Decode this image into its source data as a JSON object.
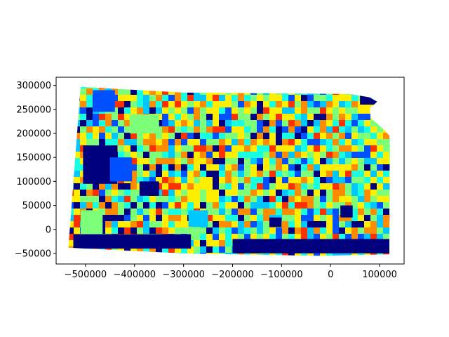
{
  "chart_data": {
    "type": "heatmap",
    "subject": "Kansas census-area choropleth (jet colormap)",
    "colormap": "jet",
    "xlim": [
      -560000,
      150000
    ],
    "ylim": [
      -72000,
      317000
    ],
    "x_ticks": [
      -500000,
      -400000,
      -300000,
      -200000,
      -100000,
      0,
      100000
    ],
    "x_tick_labels": [
      "−500000",
      "−400000",
      "−300000",
      "−200000",
      "−100000",
      "0",
      "100000"
    ],
    "y_ticks": [
      -50000,
      0,
      50000,
      100000,
      150000,
      200000,
      250000,
      300000
    ],
    "y_tick_labels": [
      "−50000",
      "0",
      "50000",
      "100000",
      "150000",
      "200000",
      "250000",
      "300000"
    ],
    "grid": false,
    "outline": [
      [
        -510000,
        297000
      ],
      [
        -300000,
        285000
      ],
      [
        40000,
        282000
      ],
      [
        80000,
        275000
      ],
      [
        95000,
        266000
      ],
      [
        80000,
        252000
      ],
      [
        82000,
        232000
      ],
      [
        110000,
        207000
      ],
      [
        120000,
        195000
      ],
      [
        121000,
        182000
      ],
      [
        120000,
        -52000
      ],
      [
        -20000,
        -55000
      ],
      [
        -300000,
        -50000
      ],
      [
        -535000,
        -38000
      ]
    ],
    "colors": {
      "dark_navy": "#00007f",
      "blue": "#0050ff",
      "cyan": "#16ffe1",
      "light_blue": "#00c8ff",
      "green": "#7dff7a",
      "yellow": "#ffee00",
      "orange": "#ff8c00",
      "red": "#ff3000"
    }
  }
}
